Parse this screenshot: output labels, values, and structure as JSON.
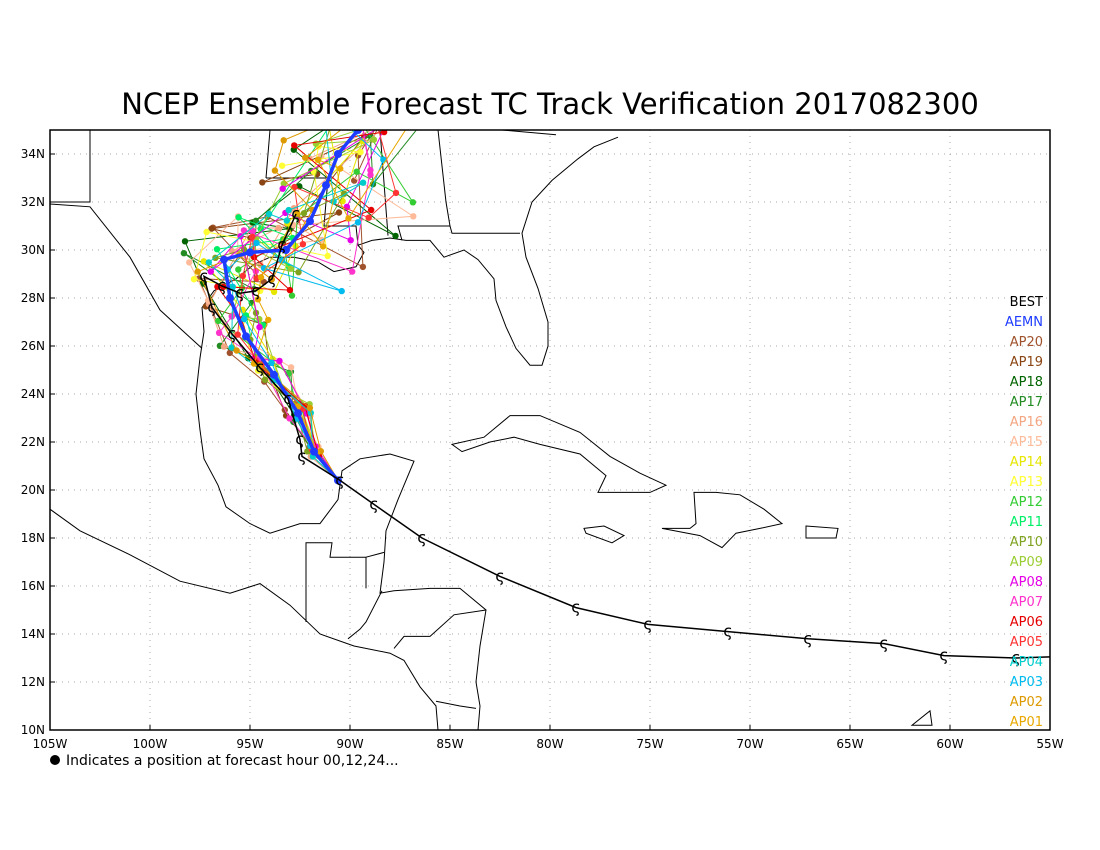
{
  "title": "NCEP Ensemble Forecast TC Track Verification 2017082300",
  "footnote": "Indicates a position at forecast hour 00,12,24...",
  "map": {
    "lon_range": [
      -105,
      -55
    ],
    "lat_range": [
      10,
      35
    ],
    "grid": true,
    "lon_ticks": [
      {
        "value": -105,
        "label": "105W"
      },
      {
        "value": -100,
        "label": "100W"
      },
      {
        "value": -95,
        "label": "95W"
      },
      {
        "value": -90,
        "label": "90W"
      },
      {
        "value": -85,
        "label": "85W"
      },
      {
        "value": -80,
        "label": "80W"
      },
      {
        "value": -75,
        "label": "75W"
      },
      {
        "value": -70,
        "label": "70W"
      },
      {
        "value": -65,
        "label": "65W"
      },
      {
        "value": -60,
        "label": "60W"
      },
      {
        "value": -55,
        "label": "55W"
      }
    ],
    "lat_ticks": [
      {
        "value": 10,
        "label": "10N"
      },
      {
        "value": 12,
        "label": "12N"
      },
      {
        "value": 14,
        "label": "14N"
      },
      {
        "value": 16,
        "label": "16N"
      },
      {
        "value": 18,
        "label": "18N"
      },
      {
        "value": 20,
        "label": "20N"
      },
      {
        "value": 22,
        "label": "22N"
      },
      {
        "value": 24,
        "label": "24N"
      },
      {
        "value": 26,
        "label": "26N"
      },
      {
        "value": 28,
        "label": "28N"
      },
      {
        "value": 30,
        "label": "30N"
      },
      {
        "value": 32,
        "label": "32N"
      },
      {
        "value": 34,
        "label": "34N"
      }
    ]
  },
  "legend": [
    {
      "name": "BEST",
      "color": "#000000"
    },
    {
      "name": "AEMN",
      "color": "#1e3cff"
    },
    {
      "name": "AP20",
      "color": "#a0522d"
    },
    {
      "name": "AP19",
      "color": "#8b4513"
    },
    {
      "name": "AP18",
      "color": "#006400"
    },
    {
      "name": "AP17",
      "color": "#228b22"
    },
    {
      "name": "AP16",
      "color": "#f4a582"
    },
    {
      "name": "AP15",
      "color": "#ffbb99"
    },
    {
      "name": "AP14",
      "color": "#e6e600"
    },
    {
      "name": "AP13",
      "color": "#ffff33"
    },
    {
      "name": "AP12",
      "color": "#33cc33"
    },
    {
      "name": "AP11",
      "color": "#00ee66"
    },
    {
      "name": "AP10",
      "color": "#7fa31f"
    },
    {
      "name": "AP09",
      "color": "#9acd32"
    },
    {
      "name": "AP08",
      "color": "#e600e6"
    },
    {
      "name": "AP07",
      "color": "#ff33cc"
    },
    {
      "name": "AP06",
      "color": "#e60000"
    },
    {
      "name": "AP05",
      "color": "#ff3333"
    },
    {
      "name": "AP04",
      "color": "#00cccc"
    },
    {
      "name": "AP03",
      "color": "#00bbee"
    },
    {
      "name": "AP02",
      "color": "#dd9900"
    },
    {
      "name": "AP01",
      "color": "#e8a800"
    }
  ],
  "best_track": [
    {
      "lon": -56.7,
      "lat": 13.0
    },
    {
      "lon": -60.3,
      "lat": 13.1
    },
    {
      "lon": -63.3,
      "lat": 13.6
    },
    {
      "lon": -67.1,
      "lat": 13.8
    },
    {
      "lon": -71.1,
      "lat": 14.1
    },
    {
      "lon": -75.1,
      "lat": 14.4
    },
    {
      "lon": -78.7,
      "lat": 15.1
    },
    {
      "lon": -82.5,
      "lat": 16.4
    },
    {
      "lon": -86.4,
      "lat": 18.0
    },
    {
      "lon": -88.8,
      "lat": 19.4
    },
    {
      "lon": -90.5,
      "lat": 20.4
    },
    {
      "lon": -92.4,
      "lat": 21.4
    },
    {
      "lon": -92.5,
      "lat": 22.1
    },
    {
      "lon": -93.1,
      "lat": 23.8
    },
    {
      "lon": -94.5,
      "lat": 25.1
    },
    {
      "lon": -95.9,
      "lat": 26.5
    },
    {
      "lon": -96.9,
      "lat": 27.6
    },
    {
      "lon": -97.3,
      "lat": 28.9
    },
    {
      "lon": -96.4,
      "lat": 28.5
    },
    {
      "lon": -95.5,
      "lat": 28.2
    },
    {
      "lon": -94.7,
      "lat": 28.3
    },
    {
      "lon": -93.9,
      "lat": 28.8
    },
    {
      "lon": -93.4,
      "lat": 30.2
    },
    {
      "lon": -92.7,
      "lat": 31.5
    }
  ],
  "aemn_track": [
    {
      "lon": -90.6,
      "lat": 20.4
    },
    {
      "lon": -91.8,
      "lat": 21.6
    },
    {
      "lon": -92.6,
      "lat": 23.2
    },
    {
      "lon": -93.8,
      "lat": 24.8
    },
    {
      "lon": -95.2,
      "lat": 26.4
    },
    {
      "lon": -96.0,
      "lat": 28.0
    },
    {
      "lon": -96.3,
      "lat": 29.6
    },
    {
      "lon": -95.0,
      "lat": 29.9
    },
    {
      "lon": -93.2,
      "lat": 30.0
    },
    {
      "lon": -92.0,
      "lat": 31.2
    },
    {
      "lon": -91.2,
      "lat": 32.7
    },
    {
      "lon": -90.6,
      "lat": 34.0
    },
    {
      "lon": -89.6,
      "lat": 35.0
    }
  ]
}
